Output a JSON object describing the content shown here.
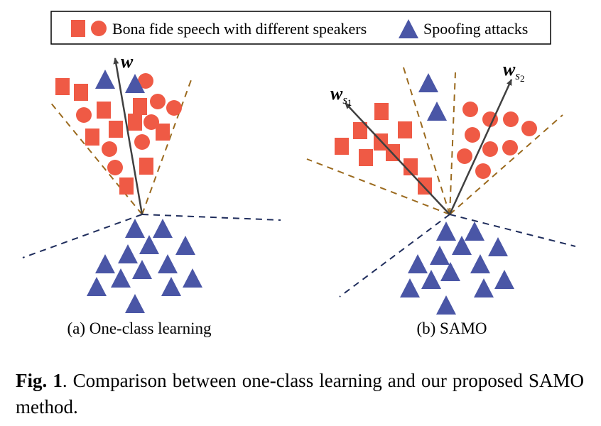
{
  "legend": {
    "bona_fide_label": "Bona fide speech with different speakers",
    "spoof_label": "Spoofing attacks"
  },
  "panel_a": {
    "caption": "(a) One-class learning",
    "vector": {
      "symbol": "w",
      "sub": ""
    }
  },
  "panel_b": {
    "caption": "(b) SAMO",
    "vector_1": {
      "symbol": "w",
      "sub": "s",
      "subsub": "1"
    },
    "vector_2": {
      "symbol": "w",
      "sub": "s",
      "subsub": "2"
    }
  },
  "caption": {
    "label": "Fig. 1",
    "text": ".  Comparison between one-class learning and our proposed SAMO method."
  },
  "colors": {
    "bona_fide": "#EF5A45",
    "spoof": "#4A56A6",
    "brown_dash": "#9B6A1E",
    "navy_dash": "#1F2D5C",
    "arrow": "#404040"
  }
}
